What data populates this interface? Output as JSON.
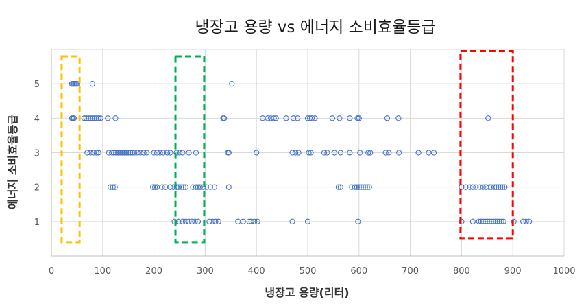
{
  "chart_data": {
    "type": "scatter",
    "title": "냉장고 용량 vs 에너지 소비효율등급",
    "xlabel": "냉장고 용량(리터)",
    "ylabel": "에너지 소비효율등급",
    "xlim": [
      0,
      1000
    ],
    "ylim": [
      0,
      6
    ],
    "xticks": [
      "0",
      "100",
      "200",
      "300",
      "400",
      "500",
      "600",
      "700",
      "800",
      "900",
      "1000"
    ],
    "yticks": [
      "1",
      "2",
      "3",
      "4",
      "5"
    ],
    "grid": true,
    "marker_color": "#4472C4",
    "points": [
      [
        40,
        5
      ],
      [
        42,
        5
      ],
      [
        44,
        5
      ],
      [
        46,
        5
      ],
      [
        48,
        5
      ],
      [
        50,
        5
      ],
      [
        80,
        5
      ],
      [
        352,
        5
      ],
      [
        40,
        4
      ],
      [
        42,
        4
      ],
      [
        44,
        4
      ],
      [
        64,
        4
      ],
      [
        68,
        4
      ],
      [
        72,
        4
      ],
      [
        76,
        4
      ],
      [
        80,
        4
      ],
      [
        84,
        4
      ],
      [
        88,
        4
      ],
      [
        92,
        4
      ],
      [
        96,
        4
      ],
      [
        110,
        4
      ],
      [
        125,
        4
      ],
      [
        335,
        4
      ],
      [
        337,
        4
      ],
      [
        412,
        4
      ],
      [
        422,
        4
      ],
      [
        428,
        4
      ],
      [
        434,
        4
      ],
      [
        438,
        4
      ],
      [
        458,
        4
      ],
      [
        472,
        4
      ],
      [
        480,
        4
      ],
      [
        500,
        4
      ],
      [
        504,
        4
      ],
      [
        508,
        4
      ],
      [
        514,
        4
      ],
      [
        548,
        4
      ],
      [
        562,
        4
      ],
      [
        582,
        4
      ],
      [
        597,
        4
      ],
      [
        600,
        4
      ],
      [
        655,
        4
      ],
      [
        677,
        4
      ],
      [
        852,
        4
      ],
      [
        70,
        3
      ],
      [
        76,
        3
      ],
      [
        82,
        3
      ],
      [
        88,
        3
      ],
      [
        92,
        3
      ],
      [
        112,
        3
      ],
      [
        118,
        3
      ],
      [
        122,
        3
      ],
      [
        126,
        3
      ],
      [
        130,
        3
      ],
      [
        134,
        3
      ],
      [
        138,
        3
      ],
      [
        142,
        3
      ],
      [
        146,
        3
      ],
      [
        150,
        3
      ],
      [
        154,
        3
      ],
      [
        158,
        3
      ],
      [
        162,
        3
      ],
      [
        168,
        3
      ],
      [
        174,
        3
      ],
      [
        180,
        3
      ],
      [
        186,
        3
      ],
      [
        200,
        3
      ],
      [
        206,
        3
      ],
      [
        212,
        3
      ],
      [
        218,
        3
      ],
      [
        226,
        3
      ],
      [
        232,
        3
      ],
      [
        244,
        3
      ],
      [
        250,
        3
      ],
      [
        256,
        3
      ],
      [
        268,
        3
      ],
      [
        282,
        3
      ],
      [
        344,
        3
      ],
      [
        346,
        3
      ],
      [
        400,
        3
      ],
      [
        470,
        3
      ],
      [
        476,
        3
      ],
      [
        482,
        3
      ],
      [
        502,
        3
      ],
      [
        506,
        3
      ],
      [
        532,
        3
      ],
      [
        538,
        3
      ],
      [
        552,
        3
      ],
      [
        564,
        3
      ],
      [
        582,
        3
      ],
      [
        602,
        3
      ],
      [
        618,
        3
      ],
      [
        622,
        3
      ],
      [
        652,
        3
      ],
      [
        658,
        3
      ],
      [
        678,
        3
      ],
      [
        716,
        3
      ],
      [
        736,
        3
      ],
      [
        746,
        3
      ],
      [
        115,
        2
      ],
      [
        120,
        2
      ],
      [
        124,
        2
      ],
      [
        198,
        2
      ],
      [
        202,
        2
      ],
      [
        206,
        2
      ],
      [
        216,
        2
      ],
      [
        222,
        2
      ],
      [
        232,
        2
      ],
      [
        238,
        2
      ],
      [
        244,
        2
      ],
      [
        248,
        2
      ],
      [
        254,
        2
      ],
      [
        258,
        2
      ],
      [
        262,
        2
      ],
      [
        276,
        2
      ],
      [
        282,
        2
      ],
      [
        286,
        2
      ],
      [
        290,
        2
      ],
      [
        296,
        2
      ],
      [
        302,
        2
      ],
      [
        310,
        2
      ],
      [
        318,
        2
      ],
      [
        346,
        2
      ],
      [
        560,
        2
      ],
      [
        564,
        2
      ],
      [
        586,
        2
      ],
      [
        592,
        2
      ],
      [
        596,
        2
      ],
      [
        600,
        2
      ],
      [
        604,
        2
      ],
      [
        608,
        2
      ],
      [
        612,
        2
      ],
      [
        616,
        2
      ],
      [
        620,
        2
      ],
      [
        800,
        2
      ],
      [
        808,
        2
      ],
      [
        816,
        2
      ],
      [
        822,
        2
      ],
      [
        828,
        2
      ],
      [
        836,
        2
      ],
      [
        842,
        2
      ],
      [
        848,
        2
      ],
      [
        854,
        2
      ],
      [
        858,
        2
      ],
      [
        864,
        2
      ],
      [
        868,
        2
      ],
      [
        872,
        2
      ],
      [
        876,
        2
      ],
      [
        880,
        2
      ],
      [
        884,
        2
      ],
      [
        240,
        1
      ],
      [
        248,
        1
      ],
      [
        256,
        1
      ],
      [
        262,
        1
      ],
      [
        268,
        1
      ],
      [
        274,
        1
      ],
      [
        280,
        1
      ],
      [
        286,
        1
      ],
      [
        308,
        1
      ],
      [
        314,
        1
      ],
      [
        320,
        1
      ],
      [
        326,
        1
      ],
      [
        364,
        1
      ],
      [
        374,
        1
      ],
      [
        386,
        1
      ],
      [
        390,
        1
      ],
      [
        396,
        1
      ],
      [
        402,
        1
      ],
      [
        470,
        1
      ],
      [
        500,
        1
      ],
      [
        598,
        1
      ],
      [
        800,
        1
      ],
      [
        822,
        1
      ],
      [
        834,
        1
      ],
      [
        838,
        1
      ],
      [
        842,
        1
      ],
      [
        846,
        1
      ],
      [
        850,
        1
      ],
      [
        854,
        1
      ],
      [
        858,
        1
      ],
      [
        862,
        1
      ],
      [
        866,
        1
      ],
      [
        870,
        1
      ],
      [
        874,
        1
      ],
      [
        878,
        1
      ],
      [
        882,
        1
      ],
      [
        902,
        1
      ],
      [
        920,
        1
      ],
      [
        926,
        1
      ],
      [
        932,
        1
      ]
    ],
    "highlight_boxes": [
      {
        "x": [
          20,
          55
        ],
        "y": [
          0.4,
          5.8
        ],
        "color": "#FFC000"
      },
      {
        "x": [
          242,
          298
        ],
        "y": [
          0.4,
          5.8
        ],
        "color": "#00B050"
      },
      {
        "x": [
          798,
          900
        ],
        "y": [
          0.5,
          5.95
        ],
        "color": "#FF0000"
      }
    ]
  }
}
